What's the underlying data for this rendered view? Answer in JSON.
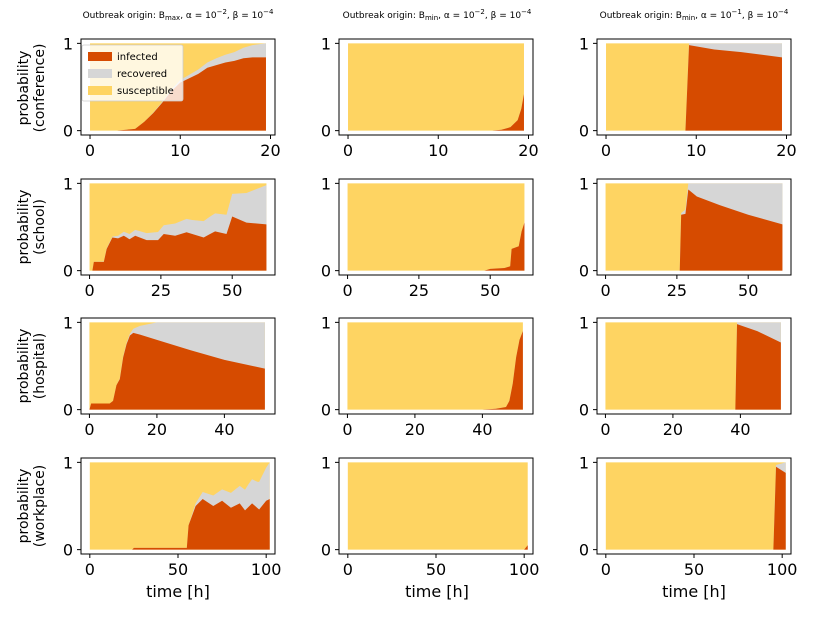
{
  "colors": {
    "infected": "#d64b00",
    "recovered": "#d6d6d6",
    "susceptible": "#fed462"
  },
  "legend": {
    "placement": "top-left",
    "entries": [
      {
        "key": "infected",
        "label": "infected"
      },
      {
        "key": "recovered",
        "label": "recovered"
      },
      {
        "key": "susceptible",
        "label": "susceptible"
      }
    ]
  },
  "columns": [
    {
      "title": "Outbreak origin: B",
      "sub": "max",
      "tail": ", α = 10",
      "e1": "−2",
      "mid": ", β = 10",
      "e2": "−4"
    },
    {
      "title": "Outbreak origin: B",
      "sub": "min",
      "tail": ", α = 10",
      "e1": "−2",
      "mid": ", β = 10",
      "e2": "−4"
    },
    {
      "title": "Outbreak origin: B",
      "sub": "min",
      "tail": ", α = 10",
      "e1": "−1",
      "mid": ", β = 10",
      "e2": "−4"
    }
  ],
  "rows": [
    {
      "ylabel_1": "probability",
      "ylabel_2": "(conference)",
      "xticks": [
        "0",
        "10",
        "20"
      ],
      "xtick_values": [
        0,
        10,
        20
      ],
      "xlim": [
        -1,
        20.5
      ]
    },
    {
      "ylabel_1": "probability",
      "ylabel_2": "(school)",
      "xticks": [
        "0",
        "25",
        "50"
      ],
      "xtick_values": [
        0,
        25,
        50
      ],
      "xlim": [
        -3,
        65
      ]
    },
    {
      "ylabel_1": "probability",
      "ylabel_2": "(hospital)",
      "xticks": [
        "0",
        "20",
        "40"
      ],
      "xtick_values": [
        0,
        20,
        40
      ],
      "xlim": [
        -2.5,
        55
      ]
    },
    {
      "ylabel_1": "probability",
      "ylabel_2": "(workplace)",
      "xticks": [
        "0",
        "50",
        "100"
      ],
      "xtick_values": [
        0,
        50,
        100
      ],
      "xlim": [
        -5,
        105
      ]
    }
  ],
  "yticks": [
    "0",
    "1"
  ],
  "ytick_values": [
    0,
    1
  ],
  "ylim": [
    -0.05,
    1.05
  ],
  "xlabel": "time [h]",
  "chart_data": {
    "type": "area",
    "stacking": "stacked to 1 (infected bottom, recovered middle, susceptible top)",
    "ylim": [
      -0.05,
      1.05
    ],
    "panels": [
      {
        "row": 0,
        "col": 0,
        "t_end": 19.5,
        "infected": [
          [
            0,
            0
          ],
          [
            3,
            0
          ],
          [
            4,
            0.01
          ],
          [
            5,
            0.02
          ],
          [
            6,
            0.1
          ],
          [
            7,
            0.2
          ],
          [
            8,
            0.32
          ],
          [
            9,
            0.45
          ],
          [
            10,
            0.55
          ],
          [
            11,
            0.6
          ],
          [
            12,
            0.65
          ],
          [
            13,
            0.72
          ],
          [
            14,
            0.75
          ],
          [
            15,
            0.78
          ],
          [
            16,
            0.8
          ],
          [
            17,
            0.83
          ],
          [
            18,
            0.84
          ],
          [
            19.5,
            0.84
          ]
        ],
        "recovered": [
          [
            0,
            0
          ],
          [
            6,
            0
          ],
          [
            8,
            0.01
          ],
          [
            10,
            0.03
          ],
          [
            12,
            0.05
          ],
          [
            13,
            0.06
          ],
          [
            14,
            0.08
          ],
          [
            15,
            0.09
          ],
          [
            16,
            0.1
          ],
          [
            17,
            0.12
          ],
          [
            18,
            0.14
          ],
          [
            19.5,
            0.16
          ]
        ]
      },
      {
        "row": 0,
        "col": 1,
        "t_end": 19.5,
        "infected": [
          [
            0,
            0
          ],
          [
            16,
            0
          ],
          [
            17,
            0.01
          ],
          [
            18,
            0.04
          ],
          [
            18.8,
            0.12
          ],
          [
            19.2,
            0.25
          ],
          [
            19.5,
            0.42
          ]
        ],
        "recovered": [
          [
            0,
            0
          ],
          [
            19.5,
            0
          ]
        ]
      },
      {
        "row": 0,
        "col": 2,
        "t_end": 19.5,
        "infected": [
          [
            0,
            0
          ],
          [
            8.8,
            0
          ],
          [
            9.2,
            0.98
          ],
          [
            12,
            0.93
          ],
          [
            15,
            0.9
          ],
          [
            19.5,
            0.84
          ]
        ],
        "recovered": [
          [
            0,
            0
          ],
          [
            8.8,
            0
          ],
          [
            9.2,
            0.02
          ],
          [
            12,
            0.07
          ],
          [
            15,
            0.1
          ],
          [
            19.5,
            0.16
          ]
        ]
      },
      {
        "row": 1,
        "col": 0,
        "t_end": 62,
        "infected": [
          [
            0,
            0
          ],
          [
            1,
            0
          ],
          [
            1.5,
            0.1
          ],
          [
            5,
            0.1
          ],
          [
            6,
            0.25
          ],
          [
            8,
            0.38
          ],
          [
            10,
            0.37
          ],
          [
            12,
            0.4
          ],
          [
            14,
            0.36
          ],
          [
            16,
            0.4
          ],
          [
            20,
            0.35
          ],
          [
            24,
            0.35
          ],
          [
            26,
            0.42
          ],
          [
            30,
            0.4
          ],
          [
            34,
            0.44
          ],
          [
            40,
            0.38
          ],
          [
            44,
            0.45
          ],
          [
            48,
            0.42
          ],
          [
            50,
            0.62
          ],
          [
            55,
            0.55
          ],
          [
            62,
            0.53
          ]
        ],
        "recovered": [
          [
            0,
            0
          ],
          [
            2,
            0
          ],
          [
            8,
            0.01
          ],
          [
            10,
            0.03
          ],
          [
            14,
            0.06
          ],
          [
            20,
            0.08
          ],
          [
            26,
            0.1
          ],
          [
            30,
            0.14
          ],
          [
            36,
            0.16
          ],
          [
            42,
            0.2
          ],
          [
            48,
            0.22
          ],
          [
            50,
            0.26
          ],
          [
            55,
            0.34
          ],
          [
            62,
            0.45
          ]
        ]
      },
      {
        "row": 1,
        "col": 1,
        "t_end": 62,
        "infected": [
          [
            0,
            0
          ],
          [
            48,
            0
          ],
          [
            50,
            0.02
          ],
          [
            55,
            0.03
          ],
          [
            57,
            0.05
          ],
          [
            57.5,
            0.25
          ],
          [
            60,
            0.28
          ],
          [
            61,
            0.45
          ],
          [
            62,
            0.55
          ]
        ],
        "recovered": [
          [
            0,
            0
          ],
          [
            62,
            0
          ]
        ]
      },
      {
        "row": 1,
        "col": 2,
        "t_end": 62,
        "infected": [
          [
            0,
            0
          ],
          [
            26,
            0
          ],
          [
            26.5,
            0.64
          ],
          [
            28,
            0.65
          ],
          [
            29,
            0.93
          ],
          [
            32,
            0.85
          ],
          [
            40,
            0.75
          ],
          [
            50,
            0.64
          ],
          [
            62,
            0.53
          ]
        ],
        "recovered": [
          [
            0,
            0
          ],
          [
            26,
            0
          ],
          [
            26.5,
            0.02
          ],
          [
            28,
            0.05
          ],
          [
            29,
            0.07
          ],
          [
            32,
            0.15
          ],
          [
            40,
            0.25
          ],
          [
            50,
            0.36
          ],
          [
            62,
            0.47
          ]
        ]
      },
      {
        "row": 2,
        "col": 0,
        "t_end": 52,
        "infected": [
          [
            0,
            0
          ],
          [
            0.5,
            0.07
          ],
          [
            6,
            0.07
          ],
          [
            7,
            0.1
          ],
          [
            8,
            0.28
          ],
          [
            9,
            0.35
          ],
          [
            10,
            0.6
          ],
          [
            11,
            0.75
          ],
          [
            12,
            0.85
          ],
          [
            13,
            0.88
          ],
          [
            15,
            0.86
          ],
          [
            20,
            0.8
          ],
          [
            30,
            0.68
          ],
          [
            40,
            0.57
          ],
          [
            52,
            0.47
          ]
        ],
        "recovered": [
          [
            0,
            0
          ],
          [
            8,
            0
          ],
          [
            12,
            0.02
          ],
          [
            15,
            0.1
          ],
          [
            20,
            0.2
          ],
          [
            30,
            0.32
          ],
          [
            40,
            0.43
          ],
          [
            52,
            0.53
          ]
        ]
      },
      {
        "row": 2,
        "col": 1,
        "t_end": 52,
        "infected": [
          [
            0,
            0
          ],
          [
            40,
            0
          ],
          [
            44,
            0.01
          ],
          [
            47,
            0.03
          ],
          [
            48,
            0.1
          ],
          [
            49,
            0.3
          ],
          [
            50,
            0.6
          ],
          [
            51,
            0.8
          ],
          [
            52,
            0.9
          ]
        ],
        "recovered": [
          [
            0,
            0
          ],
          [
            52,
            0
          ]
        ]
      },
      {
        "row": 2,
        "col": 2,
        "t_end": 52,
        "infected": [
          [
            0,
            0
          ],
          [
            38.5,
            0
          ],
          [
            39,
            0.98
          ],
          [
            45,
            0.9
          ],
          [
            52,
            0.77
          ]
        ],
        "recovered": [
          [
            0,
            0
          ],
          [
            38.5,
            0
          ],
          [
            39,
            0.02
          ],
          [
            45,
            0.1
          ],
          [
            52,
            0.23
          ]
        ]
      },
      {
        "row": 3,
        "col": 0,
        "t_end": 102,
        "infected": [
          [
            0,
            0
          ],
          [
            24,
            0
          ],
          [
            25,
            0.02
          ],
          [
            55,
            0.02
          ],
          [
            56,
            0.28
          ],
          [
            60,
            0.5
          ],
          [
            64,
            0.58
          ],
          [
            70,
            0.5
          ],
          [
            75,
            0.56
          ],
          [
            80,
            0.48
          ],
          [
            85,
            0.53
          ],
          [
            88,
            0.45
          ],
          [
            92,
            0.53
          ],
          [
            96,
            0.46
          ],
          [
            100,
            0.56
          ],
          [
            102,
            0.58
          ]
        ],
        "recovered": [
          [
            0,
            0
          ],
          [
            56,
            0
          ],
          [
            60,
            0.03
          ],
          [
            64,
            0.08
          ],
          [
            70,
            0.12
          ],
          [
            75,
            0.13
          ],
          [
            80,
            0.17
          ],
          [
            85,
            0.2
          ],
          [
            90,
            0.26
          ],
          [
            95,
            0.3
          ],
          [
            100,
            0.38
          ],
          [
            102,
            0.42
          ]
        ]
      },
      {
        "row": 3,
        "col": 1,
        "t_end": 102,
        "infected": [
          [
            0,
            0
          ],
          [
            100,
            0
          ],
          [
            102,
            0.05
          ]
        ],
        "recovered": [
          [
            0,
            0
          ],
          [
            102,
            0
          ]
        ]
      },
      {
        "row": 3,
        "col": 2,
        "t_end": 102,
        "infected": [
          [
            0,
            0
          ],
          [
            95,
            0
          ],
          [
            96.5,
            0.95
          ],
          [
            102,
            0.88
          ]
        ],
        "recovered": [
          [
            0,
            0
          ],
          [
            95,
            0
          ],
          [
            96.5,
            0.02
          ],
          [
            102,
            0.12
          ]
        ]
      }
    ]
  }
}
